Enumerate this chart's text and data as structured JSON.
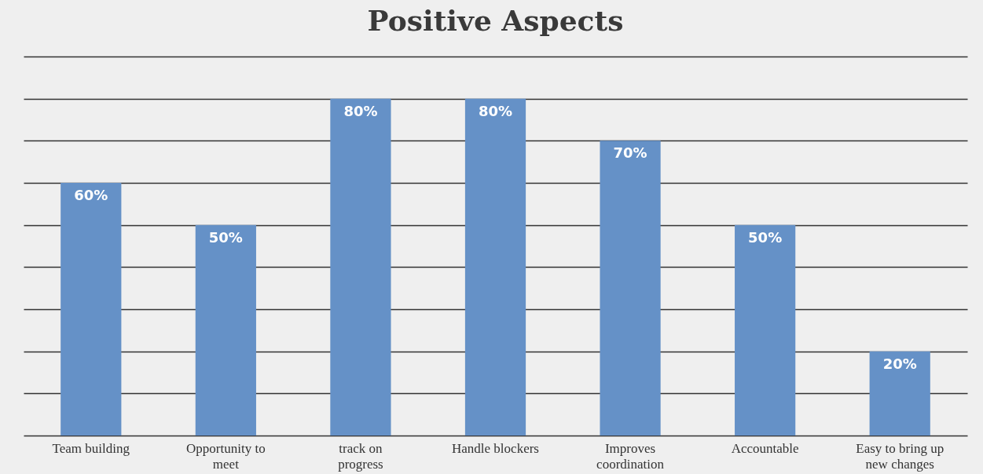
{
  "chart_data": {
    "type": "bar",
    "title": "Positive Aspects",
    "categories": [
      "Team building",
      "Opportunity to meet",
      "track on progress",
      "Handle blockers",
      "Improves coordination",
      "Accountable",
      "Easy to bring up new changes"
    ],
    "values": [
      60,
      50,
      80,
      80,
      70,
      50,
      20
    ],
    "color": "#6591c7",
    "ylim": [
      0,
      90
    ],
    "yticks": [
      {
        "value": 0,
        "label": null
      },
      {
        "value": 10,
        "label": null
      },
      {
        "value": 20,
        "label": null
      },
      {
        "value": 30,
        "label": null
      },
      {
        "value": 40,
        "label": null
      },
      {
        "value": 50,
        "label": null
      },
      {
        "value": 60,
        "label": null
      },
      {
        "value": 70,
        "label": null
      },
      {
        "value": 80,
        "label": null
      },
      {
        "value": 90,
        "label": null
      }
    ],
    "value_labels": [
      "60%",
      "50%",
      "80%",
      "80%",
      "70%",
      "50%",
      "20%"
    ],
    "grid": "y",
    "tick_labels": "x"
  }
}
